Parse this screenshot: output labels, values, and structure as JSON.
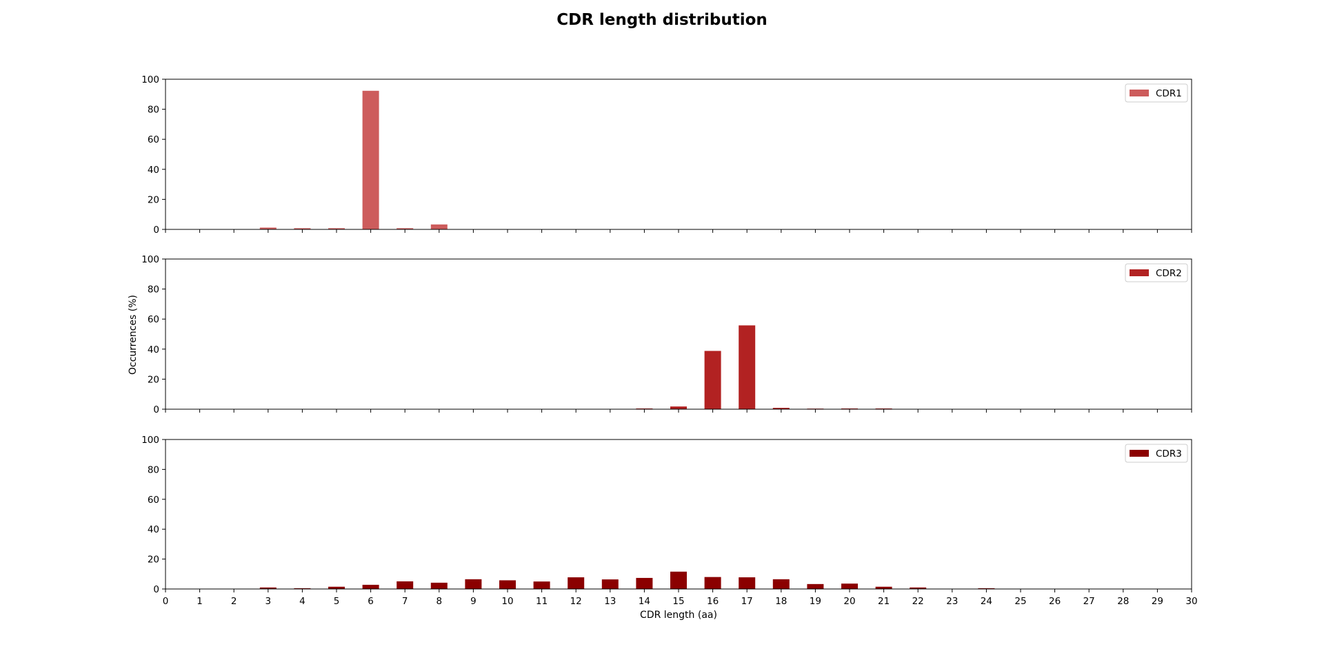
{
  "title": "CDR length distribution",
  "xlabel": "CDR length (aa)",
  "ylabel": "Occurrences (%)",
  "chart_data": {
    "type": "bar",
    "title": "CDR length distribution",
    "xlabel": "CDR length (aa)",
    "ylabel": "Occurrences (%)",
    "xlim": [
      0,
      30
    ],
    "ylim": [
      0,
      100
    ],
    "x_ticks": [
      0,
      1,
      2,
      3,
      4,
      5,
      6,
      7,
      8,
      9,
      10,
      11,
      12,
      13,
      14,
      15,
      16,
      17,
      18,
      19,
      20,
      21,
      22,
      23,
      24,
      25,
      26,
      27,
      28,
      29,
      30
    ],
    "y_ticks": [
      0,
      20,
      40,
      60,
      80,
      100
    ],
    "grid": false,
    "legend_position": "top-right",
    "layout": "3 stacked subplots sharing x axis",
    "series": [
      {
        "name": "CDR1",
        "color": "#cd5c5c",
        "x": [
          3,
          4,
          5,
          6,
          7,
          8
        ],
        "values": [
          1.2,
          0.8,
          0.8,
          92.3,
          0.8,
          3.3
        ]
      },
      {
        "name": "CDR2",
        "color": "#b22222",
        "x": [
          14,
          15,
          16,
          17,
          18,
          19,
          20,
          21
        ],
        "values": [
          0.5,
          1.8,
          38.8,
          55.8,
          0.9,
          0.4,
          0.5,
          0.5
        ]
      },
      {
        "name": "CDR3",
        "color": "#8b0000",
        "x": [
          3,
          4,
          5,
          6,
          7,
          8,
          9,
          10,
          11,
          12,
          13,
          14,
          15,
          16,
          17,
          18,
          19,
          20,
          21,
          22,
          24
        ],
        "values": [
          1.0,
          0.5,
          1.5,
          2.8,
          5.1,
          4.2,
          6.5,
          5.8,
          5.0,
          7.8,
          6.4,
          7.4,
          11.6,
          8.0,
          7.8,
          6.5,
          3.3,
          3.6,
          1.5,
          1.0,
          0.5
        ]
      }
    ]
  }
}
